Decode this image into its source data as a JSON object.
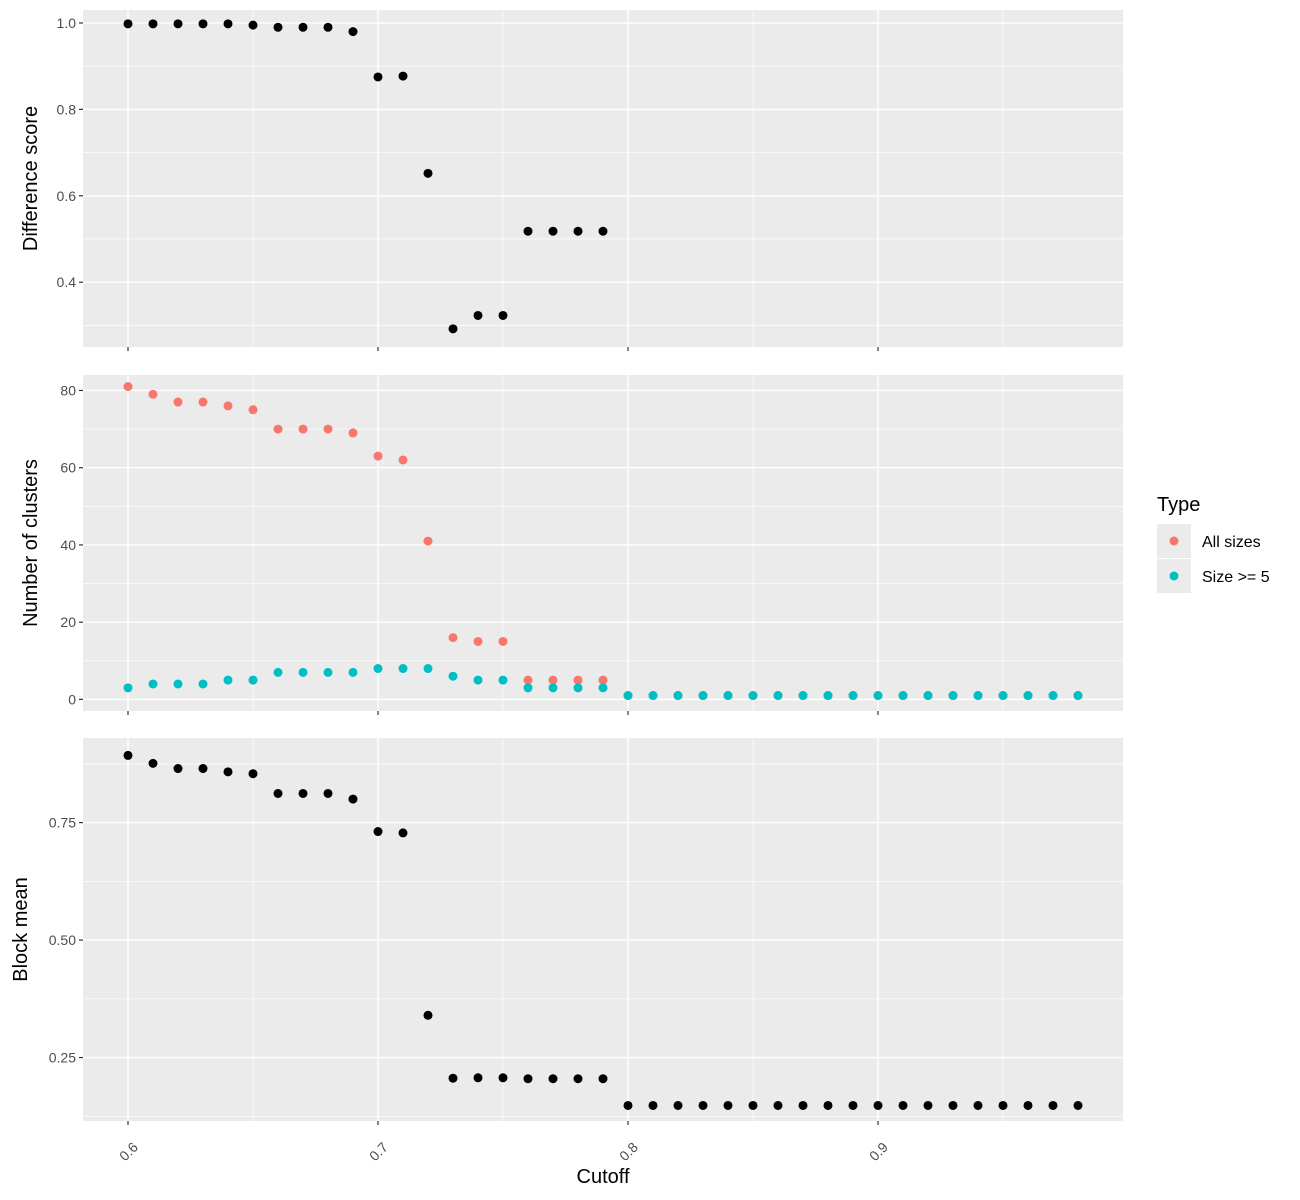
{
  "chart_data": {
    "type": "scatter",
    "xlabel": "Cutoff",
    "xlim": [
      0.582,
      0.998
    ],
    "x_ticks": [
      0.6,
      0.7,
      0.8,
      0.9
    ],
    "x_tick_labels": [
      "0.6",
      "0.7",
      "0.8",
      "0.9"
    ],
    "grid": true,
    "background": "#ebebeb",
    "gridline_color": "#ffffff",
    "legend": {
      "title": "Type",
      "placement": "right",
      "entries": [
        {
          "label": "All sizes",
          "color": "#f8766d"
        },
        {
          "label": "Size >= 5",
          "color": "#00bfc4"
        }
      ]
    },
    "panels": [
      {
        "ylabel": "Difference score",
        "ylim": [
          0.25,
          1.03
        ],
        "y_ticks": [
          0.4,
          0.6,
          0.8,
          1.0
        ],
        "y_tick_labels": [
          "0.4",
          "0.6",
          "0.8",
          "1.0"
        ],
        "series": [
          {
            "color": "#000000",
            "x": [
              0.6,
              0.61,
              0.62,
              0.63,
              0.64,
              0.65,
              0.66,
              0.67,
              0.68,
              0.69,
              0.7,
              0.71,
              0.72,
              0.73,
              0.74,
              0.75,
              0.76,
              0.77,
              0.78,
              0.79
            ],
            "y": [
              0.998,
              0.998,
              0.998,
              0.998,
              0.998,
              0.995,
              0.99,
              0.99,
              0.99,
              0.98,
              0.875,
              0.877,
              0.652,
              0.292,
              0.323,
              0.323,
              0.518,
              0.518,
              0.518,
              0.518
            ]
          }
        ]
      },
      {
        "ylabel": "Number of clusters",
        "ylim": [
          -3,
          84
        ],
        "y_ticks": [
          0,
          20,
          40,
          60,
          80
        ],
        "y_tick_labels": [
          "0",
          "20",
          "40",
          "60",
          "80"
        ],
        "series": [
          {
            "name": "All sizes",
            "color": "#f8766d",
            "x": [
              0.6,
              0.61,
              0.62,
              0.63,
              0.64,
              0.65,
              0.66,
              0.67,
              0.68,
              0.69,
              0.7,
              0.71,
              0.72,
              0.73,
              0.74,
              0.75,
              0.76,
              0.77,
              0.78,
              0.79,
              0.8,
              0.81,
              0.82,
              0.83,
              0.84,
              0.85,
              0.86,
              0.87,
              0.88,
              0.89,
              0.9,
              0.91,
              0.92,
              0.93,
              0.94,
              0.95,
              0.96,
              0.97,
              0.98
            ],
            "y": [
              81,
              79,
              77,
              77,
              76,
              75,
              70,
              70,
              70,
              69,
              63,
              62,
              41,
              16,
              15,
              15,
              5,
              5,
              5,
              5,
              1,
              1,
              1,
              1,
              1,
              1,
              1,
              1,
              1,
              1,
              1,
              1,
              1,
              1,
              1,
              1,
              1,
              1,
              1
            ]
          },
          {
            "name": "Size >= 5",
            "color": "#00bfc4",
            "x": [
              0.6,
              0.61,
              0.62,
              0.63,
              0.64,
              0.65,
              0.66,
              0.67,
              0.68,
              0.69,
              0.7,
              0.71,
              0.72,
              0.73,
              0.74,
              0.75,
              0.76,
              0.77,
              0.78,
              0.79,
              0.8,
              0.81,
              0.82,
              0.83,
              0.84,
              0.85,
              0.86,
              0.87,
              0.88,
              0.89,
              0.9,
              0.91,
              0.92,
              0.93,
              0.94,
              0.95,
              0.96,
              0.97,
              0.98
            ],
            "y": [
              3,
              4,
              4,
              4,
              5,
              5,
              7,
              7,
              7,
              7,
              8,
              8,
              8,
              6,
              5,
              5,
              3,
              3,
              3,
              3,
              1,
              1,
              1,
              1,
              1,
              1,
              1,
              1,
              1,
              1,
              1,
              1,
              1,
              1,
              1,
              1,
              1,
              1,
              1
            ]
          }
        ]
      },
      {
        "ylabel": "Block mean",
        "ylim": [
          0.115,
          0.93
        ],
        "y_ticks": [
          0.25,
          0.5,
          0.75
        ],
        "y_tick_labels": [
          "0.25",
          "0.50",
          "0.75"
        ],
        "series": [
          {
            "color": "#000000",
            "x": [
              0.6,
              0.61,
              0.62,
              0.63,
              0.64,
              0.65,
              0.66,
              0.67,
              0.68,
              0.69,
              0.7,
              0.71,
              0.72,
              0.73,
              0.74,
              0.75,
              0.76,
              0.77,
              0.78,
              0.79,
              0.8,
              0.81,
              0.82,
              0.83,
              0.84,
              0.85,
              0.86,
              0.87,
              0.88,
              0.89,
              0.9,
              0.91,
              0.92,
              0.93,
              0.94,
              0.95,
              0.96,
              0.97,
              0.98
            ],
            "y": [
              0.893,
              0.876,
              0.865,
              0.865,
              0.858,
              0.854,
              0.812,
              0.812,
              0.812,
              0.8,
              0.731,
              0.728,
              0.34,
              0.206,
              0.207,
              0.207,
              0.205,
              0.205,
              0.205,
              0.205,
              0.148,
              0.148,
              0.148,
              0.148,
              0.148,
              0.148,
              0.148,
              0.148,
              0.148,
              0.148,
              0.148,
              0.148,
              0.148,
              0.148,
              0.148,
              0.148,
              0.148,
              0.148,
              0.148
            ]
          }
        ]
      }
    ]
  }
}
